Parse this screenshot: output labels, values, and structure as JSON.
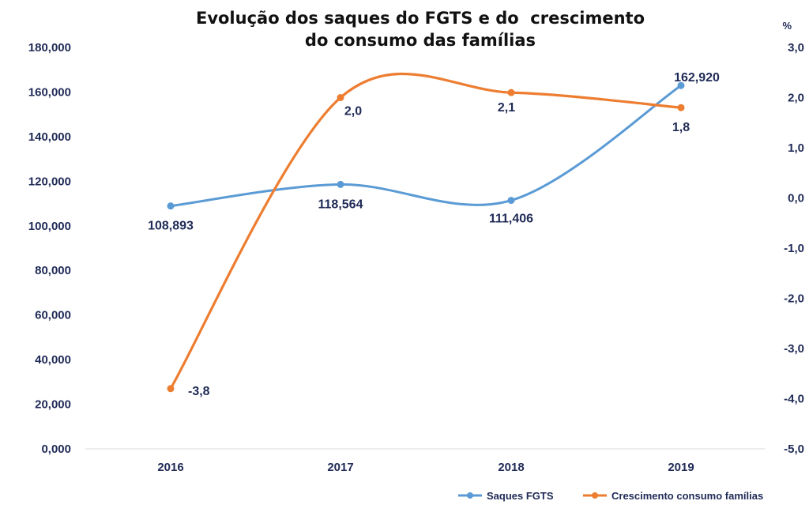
{
  "chart_data": {
    "type": "line",
    "title_line1": "Evolução dos saques do FGTS e do  crescimento",
    "title_line2": "do consumo das famílias",
    "right_axis_unit": "%",
    "categories": [
      "2016",
      "2017",
      "2018",
      "2019"
    ],
    "y_left": {
      "min": 0,
      "max": 180000,
      "step": 20000,
      "tick_labels": [
        "0,000",
        "20,000",
        "40,000",
        "60,000",
        "80,000",
        "100,000",
        "120,000",
        "140,000",
        "160,000",
        "180,000"
      ]
    },
    "y_right": {
      "min": -5,
      "max": 3,
      "step": 1,
      "tick_labels": [
        "-5,0",
        "-4,0",
        "-3,0",
        "-2,0",
        "-1,0",
        "0,0",
        "1,0",
        "2,0",
        "3,0"
      ]
    },
    "series": [
      {
        "name": "Saques FGTS",
        "axis": "left",
        "color": "#5b9bd5",
        "values": [
          108893,
          118564,
          111406,
          162920
        ],
        "labels": [
          "108,893",
          "118,564",
          "111,406",
          "162,920"
        ]
      },
      {
        "name": "Crescimento consumo famílias",
        "axis": "right",
        "color": "#ed7d31",
        "values": [
          -3.8,
          2.0,
          2.1,
          1.8
        ],
        "labels": [
          "-3,8",
          "2,0",
          "2,1",
          "1,8"
        ]
      }
    ],
    "grid": false,
    "legend_position": "bottom-right"
  }
}
